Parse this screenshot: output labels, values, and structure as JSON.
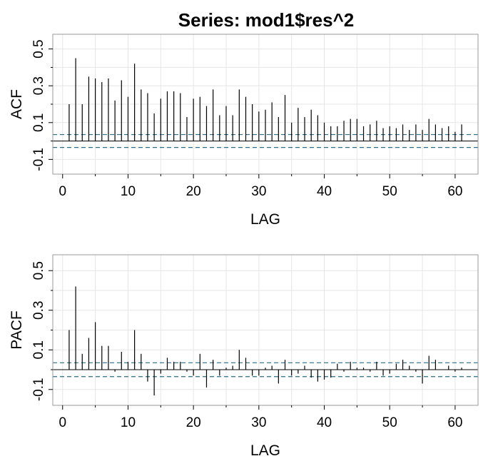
{
  "title": "Series:  mod1$res^2",
  "chart_data": [
    {
      "type": "bar",
      "ylabel": "ACF",
      "xlabel": "LAG",
      "xlim": [
        -1.5,
        63.5
      ],
      "ylim": [
        -0.18,
        0.58
      ],
      "x_ticks": [
        0,
        10,
        20,
        30,
        40,
        50,
        60
      ],
      "y_ticks": [
        -0.1,
        0.1,
        0.3,
        0.5
      ],
      "y_tick_labels": [
        "-0.1",
        "0.1",
        "0.3",
        "0.5"
      ],
      "y_minor_ticks": [
        0.0,
        0.2,
        0.4
      ],
      "grid": true,
      "confidence_bound": 0.035,
      "colors": {
        "bar": "#000000",
        "bound": "#2a6e8a",
        "grid": "#e6e6e6",
        "frame": "#999999"
      },
      "x": [
        1,
        2,
        3,
        4,
        5,
        6,
        7,
        8,
        9,
        10,
        11,
        12,
        13,
        14,
        15,
        16,
        17,
        18,
        19,
        20,
        21,
        22,
        23,
        24,
        25,
        26,
        27,
        28,
        29,
        30,
        31,
        32,
        33,
        34,
        35,
        36,
        37,
        38,
        39,
        40,
        41,
        42,
        43,
        44,
        45,
        46,
        47,
        48,
        49,
        50,
        51,
        52,
        53,
        54,
        55,
        56,
        57,
        58,
        59,
        60,
        61
      ],
      "values": [
        0.2,
        0.45,
        0.2,
        0.35,
        0.34,
        0.32,
        0.34,
        0.22,
        0.33,
        0.24,
        0.42,
        0.28,
        0.26,
        0.15,
        0.23,
        0.27,
        0.27,
        0.26,
        0.13,
        0.23,
        0.24,
        0.19,
        0.28,
        0.14,
        0.19,
        0.14,
        0.28,
        0.24,
        0.2,
        0.16,
        0.17,
        0.21,
        0.13,
        0.25,
        0.1,
        0.18,
        0.13,
        0.17,
        0.14,
        0.1,
        0.08,
        0.08,
        0.11,
        0.12,
        0.12,
        0.08,
        0.09,
        0.11,
        0.07,
        0.08,
        0.07,
        0.09,
        0.06,
        0.09,
        0.06,
        0.12,
        0.09,
        0.07,
        0.08,
        0.05,
        0.09
      ]
    },
    {
      "type": "bar",
      "ylabel": "PACF",
      "xlabel": "LAG",
      "xlim": [
        -1.5,
        63.5
      ],
      "ylim": [
        -0.18,
        0.58
      ],
      "x_ticks": [
        0,
        10,
        20,
        30,
        40,
        50,
        60
      ],
      "y_ticks": [
        -0.1,
        0.1,
        0.3,
        0.5
      ],
      "y_tick_labels": [
        "-0.1",
        "0.1",
        "0.3",
        "0.5"
      ],
      "y_minor_ticks": [
        0.0,
        0.2,
        0.4
      ],
      "grid": true,
      "confidence_bound": 0.035,
      "colors": {
        "bar": "#000000",
        "bound": "#2a6e8a",
        "grid": "#e6e6e6",
        "frame": "#999999"
      },
      "x": [
        1,
        2,
        3,
        4,
        5,
        6,
        7,
        8,
        9,
        10,
        11,
        12,
        13,
        14,
        15,
        16,
        17,
        18,
        19,
        20,
        21,
        22,
        23,
        24,
        25,
        26,
        27,
        28,
        29,
        30,
        31,
        32,
        33,
        34,
        35,
        36,
        37,
        38,
        39,
        40,
        41,
        42,
        43,
        44,
        45,
        46,
        47,
        48,
        49,
        50,
        51,
        52,
        53,
        54,
        55,
        56,
        57,
        58,
        59,
        60,
        61
      ],
      "values": [
        0.2,
        0.42,
        0.08,
        0.16,
        0.24,
        0.12,
        0.12,
        -0.01,
        0.09,
        0.04,
        0.2,
        0.08,
        -0.06,
        -0.13,
        -0.02,
        0.06,
        0.04,
        0.04,
        -0.01,
        -0.03,
        0.08,
        -0.09,
        0.05,
        -0.03,
        0.01,
        0.02,
        0.1,
        0.06,
        -0.03,
        -0.03,
        0.01,
        0.02,
        -0.07,
        0.05,
        -0.03,
        -0.02,
        0.02,
        -0.04,
        -0.06,
        -0.05,
        -0.04,
        0.03,
        -0.01,
        0.04,
        0.01,
        0.01,
        -0.01,
        0.04,
        -0.03,
        -0.02,
        0.03,
        0.05,
        0.02,
        -0.01,
        -0.07,
        0.07,
        0.05,
        0.0,
        0.02,
        -0.01,
        0.01
      ]
    }
  ]
}
